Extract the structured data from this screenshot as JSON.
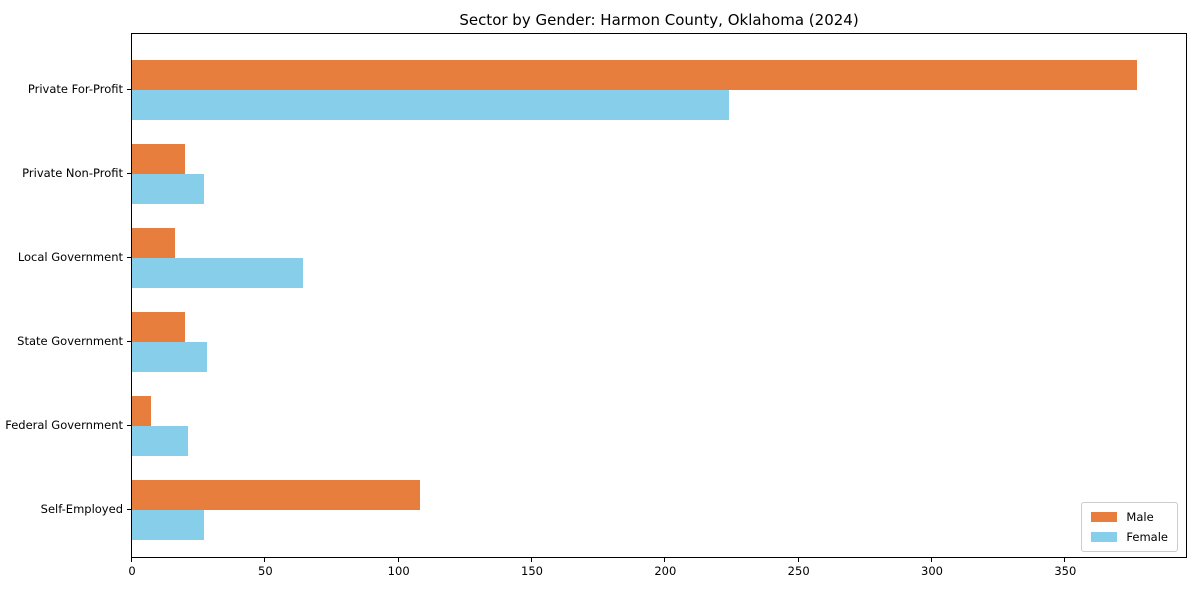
{
  "title": "Sector by Gender: Harmon County, Oklahoma (2024)",
  "chart_data": {
    "type": "bar",
    "orientation": "horizontal",
    "title": "Sector by Gender: Harmon County, Oklahoma (2024)",
    "categories": [
      "Private For-Profit",
      "Private Non-Profit",
      "Local Government",
      "State Government",
      "Federal Government",
      "Self-Employed"
    ],
    "series": [
      {
        "name": "Male",
        "color": "#e87e3e",
        "values": [
          377,
          20,
          16,
          20,
          7,
          108
        ]
      },
      {
        "name": "Female",
        "color": "#87ceeb",
        "values": [
          224,
          27,
          64,
          28,
          21,
          27
        ]
      }
    ],
    "xlabel": "",
    "ylabel": "",
    "xlim": [
      0,
      396
    ],
    "xticks": [
      0,
      50,
      100,
      150,
      200,
      250,
      300,
      350
    ],
    "grid": false,
    "legend": {
      "position": "lower right",
      "entries": [
        "Male",
        "Female"
      ]
    },
    "colors": {
      "background": "#ffffff",
      "axis": "#000000",
      "legend_border": "#cccccc",
      "text": "#000000"
    }
  }
}
